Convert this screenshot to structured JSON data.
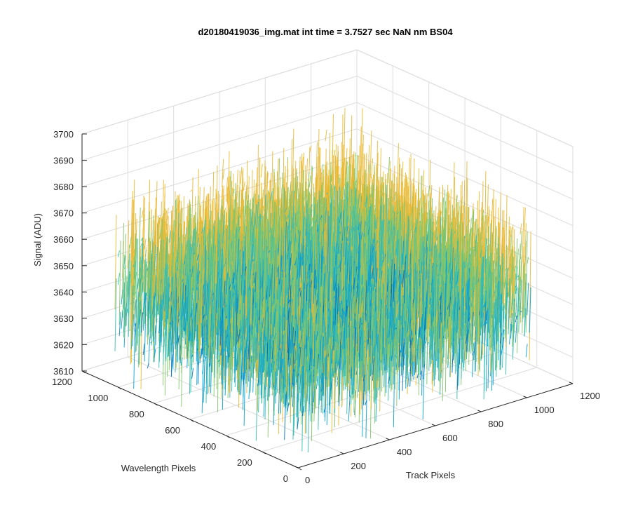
{
  "figure": {
    "title": "d20180419036_img.mat int time = 3.7527 sec  NaN nm BS04"
  },
  "chart_data": {
    "type": "surface",
    "title": "d20180419036_img.mat int time = 3.7527 sec  NaN nm BS04",
    "xlabel": "Track Pixels",
    "ylabel": "Wavelength Pixels",
    "zlabel": "Signal (ADU)",
    "xlim": [
      0,
      1200
    ],
    "ylim": [
      0,
      1200
    ],
    "zlim": [
      3610,
      3700
    ],
    "xticks": [
      "0",
      "200",
      "400",
      "600",
      "800",
      "1000",
      "1200"
    ],
    "yticks": [
      "0",
      "200",
      "400",
      "600",
      "800",
      "1000",
      "1200"
    ],
    "zticks": [
      "3610",
      "3620",
      "3630",
      "3640",
      "3650",
      "3660",
      "3670",
      "3680",
      "3690",
      "3700"
    ],
    "surface_extent": {
      "x": [
        0,
        1024
      ],
      "y": [
        0,
        1024
      ]
    },
    "signal_mean": 3650,
    "signal_typical_range": [
      3625,
      3675
    ],
    "signal_extreme_range": [
      3612,
      3692
    ],
    "colormap": [
      "#0072bd",
      "#0a9ed0",
      "#36bdb0",
      "#83c76a",
      "#e9b935"
    ],
    "grid": true
  }
}
